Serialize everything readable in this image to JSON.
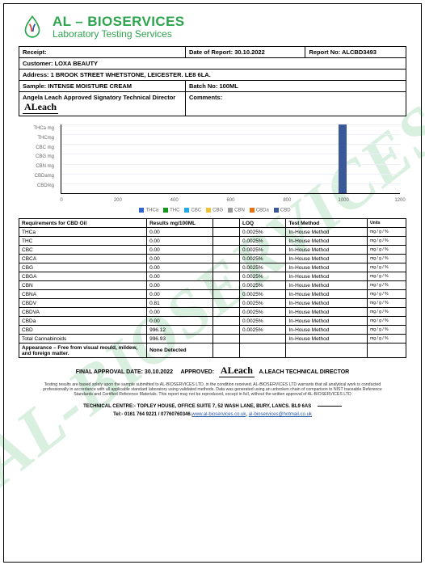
{
  "company": {
    "name": "AL – BIOSERVICES",
    "sub": "Laboratory Testing Services"
  },
  "watermark": "AL-BIOSERVICES",
  "header_row1": {
    "receipt_label": "Receipt:",
    "date_report_label": "Date of Report: 30.10.2022",
    "report_no_label": "Report No: ALCBD3493"
  },
  "customer": {
    "label": "Customer: LOXA BEAUTY"
  },
  "address": {
    "label": "Address:  1 BROOK STREET WHETSTONE, LEICESTER. LE8 6LA."
  },
  "sample": {
    "label": "Sample: INTENSE MOISTURE CREAM"
  },
  "batch": {
    "label": "Batch No: 100ML"
  },
  "signatory": {
    "label": "Angela Leach Approved Signatory Technical Director"
  },
  "comments": {
    "label": "Comments:"
  },
  "signature": "ALeach",
  "chart": {
    "ylabels": [
      "THCa mg",
      "THCmg",
      "CBC mg",
      "CBG mg",
      "CBN mg",
      "CBDamg",
      "CBDmg"
    ],
    "xticks": [
      "0",
      "200",
      "400",
      "600",
      "800",
      "1000",
      "1200"
    ],
    "xmax": 1200,
    "bar_x_value": 996,
    "ygrid_pct": [
      0,
      14.3,
      28.6,
      42.9,
      57.2,
      71.5,
      85.8
    ],
    "series": [
      {
        "name": "THCa",
        "color": "#3366cc"
      },
      {
        "name": "THC",
        "color": "#109618"
      },
      {
        "name": "CBC",
        "color": "#22aae2"
      },
      {
        "name": "CBG",
        "color": "#f1c232"
      },
      {
        "name": "CBN",
        "color": "#999999"
      },
      {
        "name": "CBDa",
        "color": "#e8710a"
      },
      {
        "name": "CBD",
        "color": "#3b5998"
      }
    ]
  },
  "results_headers": {
    "req": "Requirements for CBD Oil",
    "res": "Results mg/100ML",
    "loq": "LOQ",
    "meth": "Test Method",
    "units": "Units"
  },
  "rows": [
    {
      "name": "THCa",
      "res": "0.00",
      "loq": "0.0025%",
      "meth": "In-House Method",
      "u": "mg / g / %"
    },
    {
      "name": "THC",
      "res": "0.00",
      "loq": "0.0025%",
      "meth": "In-House Method",
      "u": "mg / g / %"
    },
    {
      "name": "CBC",
      "res": "0.00",
      "loq": "0.0025%",
      "meth": "In-House Method",
      "u": "mg / g / %"
    },
    {
      "name": "CBCA",
      "res": "0.00",
      "loq": "0.0025%",
      "meth": "In-House Method",
      "u": "mg / g / %"
    },
    {
      "name": "CBG",
      "res": "0.00",
      "loq": "0.0025%",
      "meth": "In-House Method",
      "u": "mg / g / %"
    },
    {
      "name": "CBGA",
      "res": "0.00",
      "loq": "0.0025%",
      "meth": "In-House Method",
      "u": "mg / g / %"
    },
    {
      "name": "CBN",
      "res": "0.00",
      "loq": "0.0025%",
      "meth": "In-House Method",
      "u": "mg / g / %"
    },
    {
      "name": "CBNA",
      "res": "0.00",
      "loq": "0.0025%",
      "meth": "In-House Method",
      "u": "mg / g / %"
    },
    {
      "name": "CBDV",
      "res": "0.81",
      "loq": "0.0025%",
      "meth": "In-House Method",
      "u": "mg / g / %"
    },
    {
      "name": "CBDVA",
      "res": "0.00",
      "loq": "0.0025%",
      "meth": "In-House Method",
      "u": "mg / g / %"
    },
    {
      "name": "CBDa",
      "res": "0.00",
      "loq": "0.0025%",
      "meth": "In-House Method",
      "u": "mg / g / %"
    },
    {
      "name": "CBD",
      "res": "996.12",
      "loq": "0.0025%",
      "meth": "In-House Method",
      "u": "mg / g / %"
    },
    {
      "name": "Total Cannabinoids",
      "res": "996.93",
      "loq": "",
      "meth": "In-House Method",
      "u": "mg / g / %"
    }
  ],
  "appearance": {
    "req": "Appearance – Free from visual mould, mildew, and foreign matter.",
    "res": "None Detected"
  },
  "approval": {
    "date_label": "FINAL APPROVAL DATE: 30.10.2022",
    "approved_label": "APPROVED:",
    "who": "A.LEACH TECHNICAL DIRECTOR"
  },
  "disclaimer": "Testing results are based solely upon the sample submitted to AL-BIOSERVICES LTD, in the condition received. AL-BIOSERVICES LTD warrants that all analytical work is conducted professionally in accordance with all applicable standard laboratory using validated methods. Data was generated using an unbroken chain of comparison to NIST traceable Reference Standards and Certified Reference Materials. This report may not be reproduced, except in full, without the written approval of AL-BIOSERVICES LTD",
  "address_line": "TECHNICAL CENTRE:- TOPLEY HOUSE, OFFICE SUITE 7, 52 WASH LANE, BURY, LANCS. BL9 6AS",
  "contact": {
    "tel_label": "Tel:- 0161 764 9221 / 07760760346.",
    "url": "www.al-bioservices.co.uk",
    "sep": ", ",
    "email": "al-bioservices@hotmail.co.uk"
  }
}
